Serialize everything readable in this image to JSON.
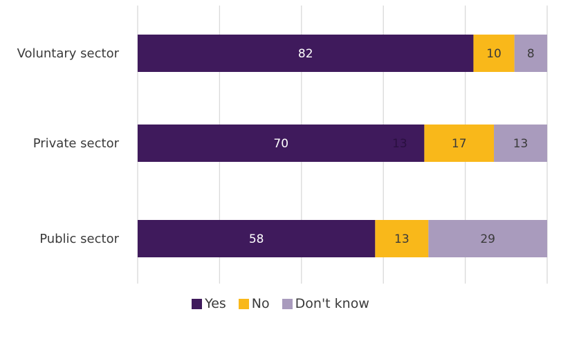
{
  "chart_data": {
    "type": "bar",
    "orientation": "horizontal",
    "stacked": true,
    "categories": [
      "Voluntary sector",
      "Private sector",
      "Public sector"
    ],
    "series": [
      {
        "name": "Yes",
        "values": [
          82,
          70,
          58
        ],
        "color": "#3f1a5c",
        "label_color": "#ffffff"
      },
      {
        "name": "No",
        "values": [
          10,
          17,
          13
        ],
        "color": "#f9b81a",
        "label_color": "#3a3a3a"
      },
      {
        "name": "Don't know",
        "values": [
          8,
          13,
          29
        ],
        "color": "#a99bbd",
        "label_color": "#3a3a3a"
      }
    ],
    "extra_labels": [
      {
        "category": "Private sector",
        "x": 64,
        "text": "13"
      }
    ],
    "xlim": [
      0,
      100
    ],
    "xticks": [
      "0",
      "20",
      "40",
      "60",
      "80",
      "100"
    ],
    "grid": true,
    "legend_position": "bottom"
  }
}
